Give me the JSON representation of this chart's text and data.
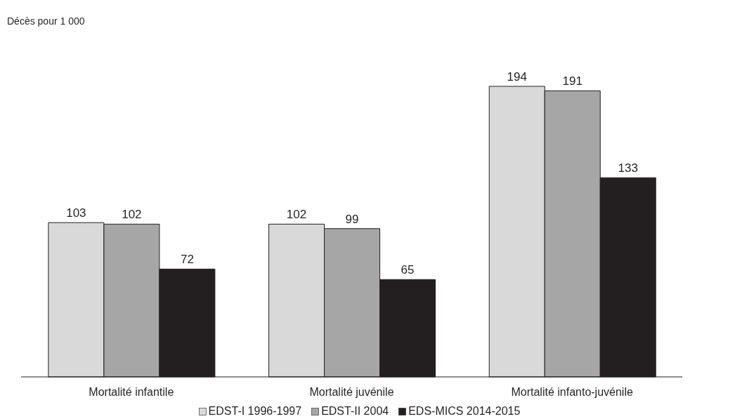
{
  "chart_data": {
    "type": "bar",
    "annotations": [
      "Décès pour 1 000"
    ],
    "categories": [
      "Mortalité infantile",
      "Mortalité juvénile",
      "Mortalité infanto-juvénile"
    ],
    "series": [
      {
        "name": "EDST-I 1996-1997",
        "color": "#d9d9d9",
        "values": [
          103,
          102,
          194
        ]
      },
      {
        "name": "EDST-II 2004",
        "color": "#a6a6a6",
        "values": [
          102,
          99,
          191
        ]
      },
      {
        "name": "EDS-MICS 2014-2015",
        "color": "#231f20",
        "values": [
          72,
          65,
          133
        ]
      }
    ],
    "data_labels": true,
    "grid": false,
    "legend": "bottom"
  }
}
